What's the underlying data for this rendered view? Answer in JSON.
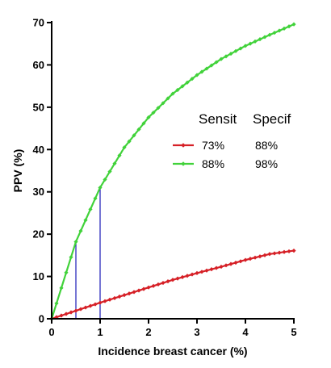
{
  "chart_data": {
    "type": "line",
    "title": "",
    "xlabel": "Incidence breast cancer (%)",
    "ylabel": "PPV (%)",
    "xlim": [
      0,
      5
    ],
    "ylim": [
      0,
      70
    ],
    "x_ticks": [
      0,
      1,
      2,
      3,
      4,
      5
    ],
    "y_ticks": [
      0,
      10,
      20,
      30,
      40,
      50,
      60,
      70
    ],
    "grid": false,
    "legend": {
      "placement": "right",
      "headers": [
        "Sensit",
        "Specif"
      ]
    },
    "series": [
      {
        "sensit": "73%",
        "specif": "88%",
        "color": "#d62027",
        "x": [
          0,
          0.5,
          1,
          1.5,
          2,
          2.5,
          3,
          3.5,
          4,
          4.5,
          5
        ],
        "values": [
          0,
          1.9,
          3.8,
          5.6,
          7.4,
          9.2,
          10.8,
          12.3,
          13.9,
          15.3,
          16.1
        ]
      },
      {
        "sensit": "88%",
        "specif": "98%",
        "color": "#41d23a",
        "x": [
          0,
          0.5,
          1,
          1.5,
          2,
          2.5,
          3,
          3.5,
          4,
          4.5,
          5
        ],
        "values": [
          0,
          18.2,
          31.0,
          40.5,
          47.6,
          53.2,
          57.6,
          61.4,
          64.5,
          67.1,
          69.6
        ]
      }
    ],
    "reference_lines": [
      {
        "x": 0.5,
        "y_to": 18.2,
        "color": "#1a1ab8"
      },
      {
        "x": 1,
        "y_to": 31.0,
        "color": "#1a1ab8"
      }
    ]
  }
}
